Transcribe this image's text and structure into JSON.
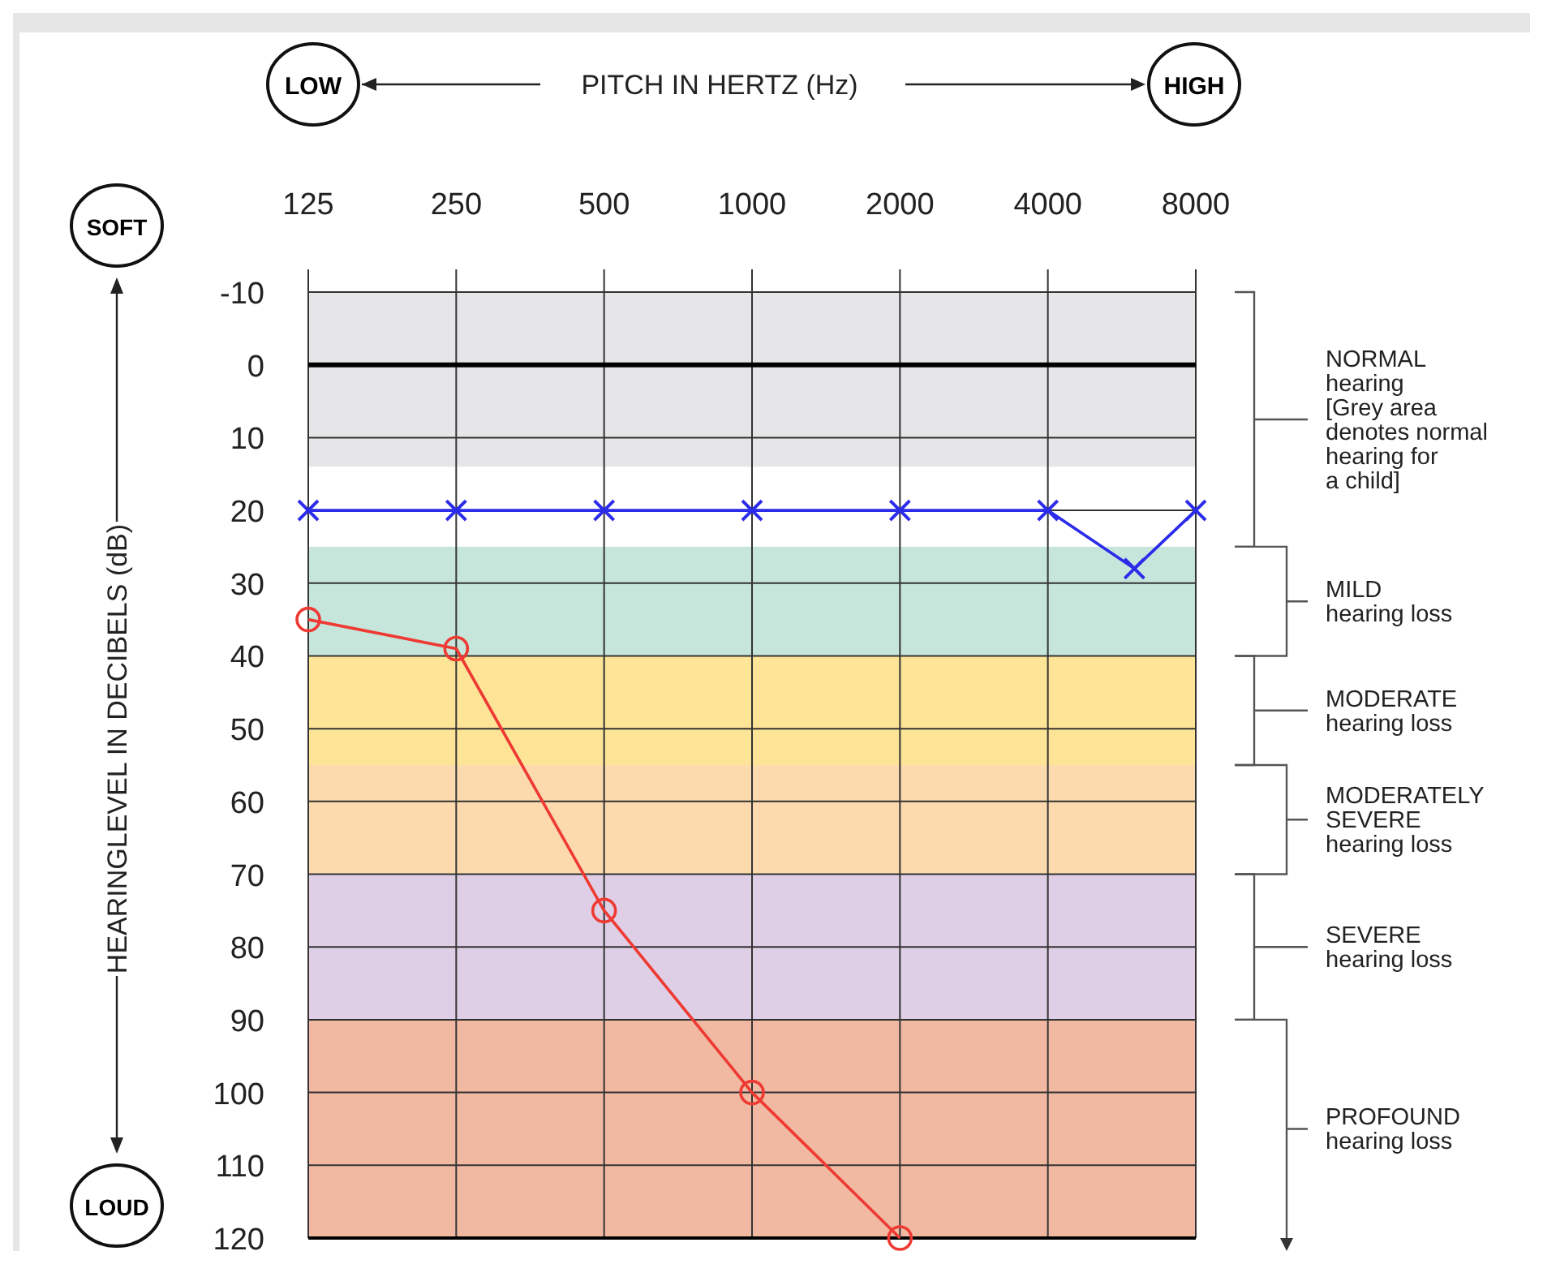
{
  "chart_data": {
    "type": "line",
    "xlabel": "PITCH IN HERTZ (Hz)",
    "ylabel": "HEARINGLEVEL IN DECIBELS (dB)",
    "annotations": [
      "LOW",
      "HIGH",
      "SOFT",
      "LOUD",
      "NORMAL\nhearing\n[Grey area\ndenotes normal\nhearing for\na child]",
      "MILD\nhearing loss",
      "MODERATE\nhearing loss",
      "MODERATELY\nSEVERE\nhearing loss",
      "SEVERE\nhearing loss",
      "PROFOUND\nhearing loss"
    ],
    "log": "x",
    "xlim": [
      125,
      8000
    ],
    "xticks": [
      125,
      250,
      500,
      1000,
      2000,
      4000,
      8000
    ],
    "ylim": [
      120,
      -10
    ],
    "yticks": [
      -10,
      0,
      10,
      20,
      30,
      40,
      50,
      60,
      70,
      80,
      90,
      100,
      110,
      120
    ],
    "grid": true,
    "series": [
      {
        "color": "#2b2bea",
        "marker": "cross",
        "x": [
          125,
          250,
          500,
          1000,
          2000,
          4000,
          6000,
          8000
        ],
        "values": [
          20,
          20,
          20,
          20,
          20,
          20,
          28,
          20
        ]
      },
      {
        "color": "#ee3a33",
        "marker": "circle",
        "x": [
          125,
          250,
          500,
          1000,
          2000
        ],
        "values": [
          35,
          39,
          75,
          100,
          120
        ]
      }
    ],
    "ref_lines": [
      {
        "axis": "y",
        "value": 0,
        "color": "#000000"
      }
    ],
    "bands": [
      {
        "axis": "y",
        "from": -10,
        "to": 14,
        "color": "#e6e6e8"
      },
      {
        "axis": "y",
        "from": 25,
        "to": 40,
        "color": "#c6e6dc"
      },
      {
        "axis": "y",
        "from": 40,
        "to": 55,
        "color": "#fde497"
      },
      {
        "axis": "y",
        "from": 55,
        "to": 70,
        "color": "#fcdaae"
      },
      {
        "axis": "y",
        "from": 70,
        "to": 90,
        "color": "#dfcfe6"
      },
      {
        "axis": "y",
        "from": 90,
        "to": 120,
        "color": "#f1b9a2"
      }
    ]
  }
}
